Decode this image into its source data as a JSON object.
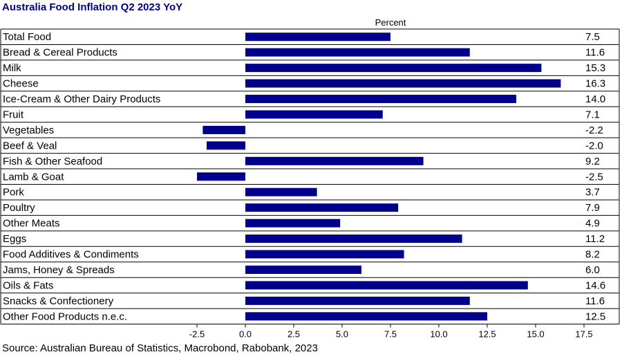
{
  "title": "Australia Food Inflation Q2 2023 YoY",
  "source": "Source: Australian Bureau of Statistics, Macrobond, Rabobank, 2023",
  "chart_data": {
    "type": "bar",
    "orientation": "horizontal",
    "title": "Australia Food Inflation Q2 2023 YoY",
    "unit_label": "Percent",
    "categories": [
      "Total Food",
      "Bread & Cereal Products",
      "Milk",
      "Cheese",
      "Ice-Cream & Other Dairy Products",
      "Fruit",
      "Vegetables",
      "Beef & Veal",
      "Fish & Other Seafood",
      "Lamb & Goat",
      "Pork",
      "Poultry",
      "Other Meats",
      "Eggs",
      "Food Additives & Condiments",
      "Jams, Honey & Spreads",
      "Oils & Fats",
      "Snacks & Confectionery",
      "Other Food Products n.e.c."
    ],
    "values": [
      7.5,
      11.6,
      15.3,
      16.3,
      14.0,
      7.1,
      -2.2,
      -2.0,
      9.2,
      -2.5,
      3.7,
      7.9,
      4.9,
      11.2,
      8.2,
      6.0,
      14.6,
      11.6,
      12.5
    ],
    "value_labels": [
      "7.5",
      "11.6",
      "15.3",
      "16.3",
      "14.0",
      "7.1",
      "-2.2",
      "-2.0",
      "9.2",
      "-2.5",
      "3.7",
      "7.9",
      "4.9",
      "11.2",
      "8.2",
      "6.0",
      "14.6",
      "11.6",
      "12.5"
    ],
    "xlim": [
      -2.5,
      17.5
    ],
    "xticks": [
      -2.5,
      0.0,
      2.5,
      5.0,
      7.5,
      10.0,
      12.5,
      15.0,
      17.5
    ],
    "xtick_labels": [
      "-2.5",
      "0.0",
      "2.5",
      "5.0",
      "7.5",
      "10.0",
      "12.5",
      "15.0",
      "17.5"
    ],
    "bar_color": "#00008b",
    "grid": false,
    "legend": "none"
  }
}
